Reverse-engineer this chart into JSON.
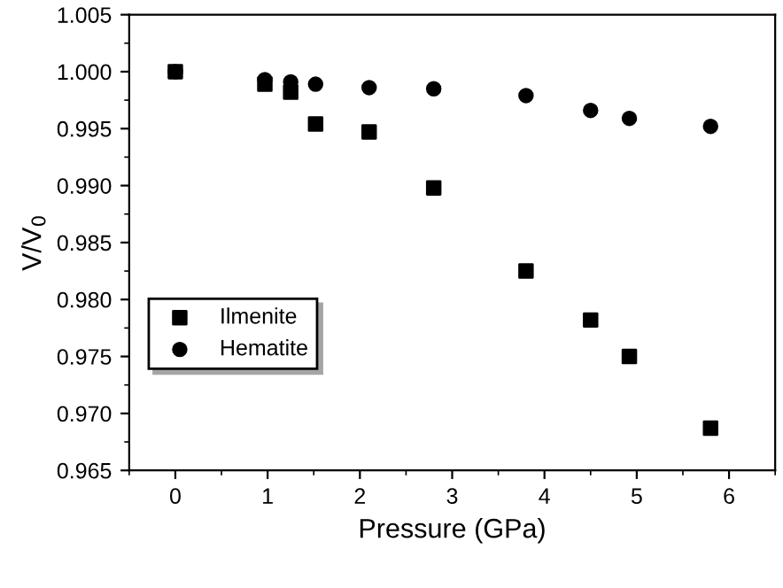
{
  "chart_data": {
    "type": "scatter",
    "xlabel": "Pressure (GPa)",
    "ylabel": "V/V$_{0}$",
    "xlim": [
      -0.5,
      6.5
    ],
    "xticks": [
      0,
      1,
      2,
      3,
      4,
      5,
      6
    ],
    "ylim": [
      0.965,
      1.005
    ],
    "yticks": [
      {
        "value": 0.965,
        "label": "0.965"
      },
      {
        "value": 0.97,
        "label": "0.970"
      },
      {
        "value": 0.975,
        "label": "0.975"
      },
      {
        "value": 0.98,
        "label": "0.980"
      },
      {
        "value": 0.985,
        "label": "0.985"
      },
      {
        "value": 0.99,
        "label": "0.990"
      },
      {
        "value": 0.995,
        "label": "0.995"
      },
      {
        "value": 1.0,
        "label": "1.000"
      },
      {
        "value": 1.005,
        "label": "1.005"
      }
    ],
    "grid": false,
    "legend": "left",
    "series": [
      {
        "name": "Ilmenite",
        "color": "#000000",
        "marker": "square",
        "x": [
          0,
          0.97,
          1.25,
          1.52,
          2.1,
          2.8,
          3.8,
          4.5,
          4.92,
          5.8
        ],
        "values": [
          1.0,
          0.9989,
          0.9982,
          0.9954,
          0.9947,
          0.9898,
          0.9825,
          0.9782,
          0.975,
          0.9687
        ]
      },
      {
        "name": "Hematite",
        "color": "#000000",
        "marker": "circle",
        "x": [
          0,
          0.97,
          1.25,
          1.52,
          2.1,
          2.8,
          3.8,
          4.5,
          4.92,
          5.8
        ],
        "values": [
          1.0,
          0.9993,
          0.9991,
          0.9989,
          0.9986,
          0.9985,
          0.9979,
          0.9966,
          0.9959,
          0.9952
        ]
      }
    ]
  }
}
